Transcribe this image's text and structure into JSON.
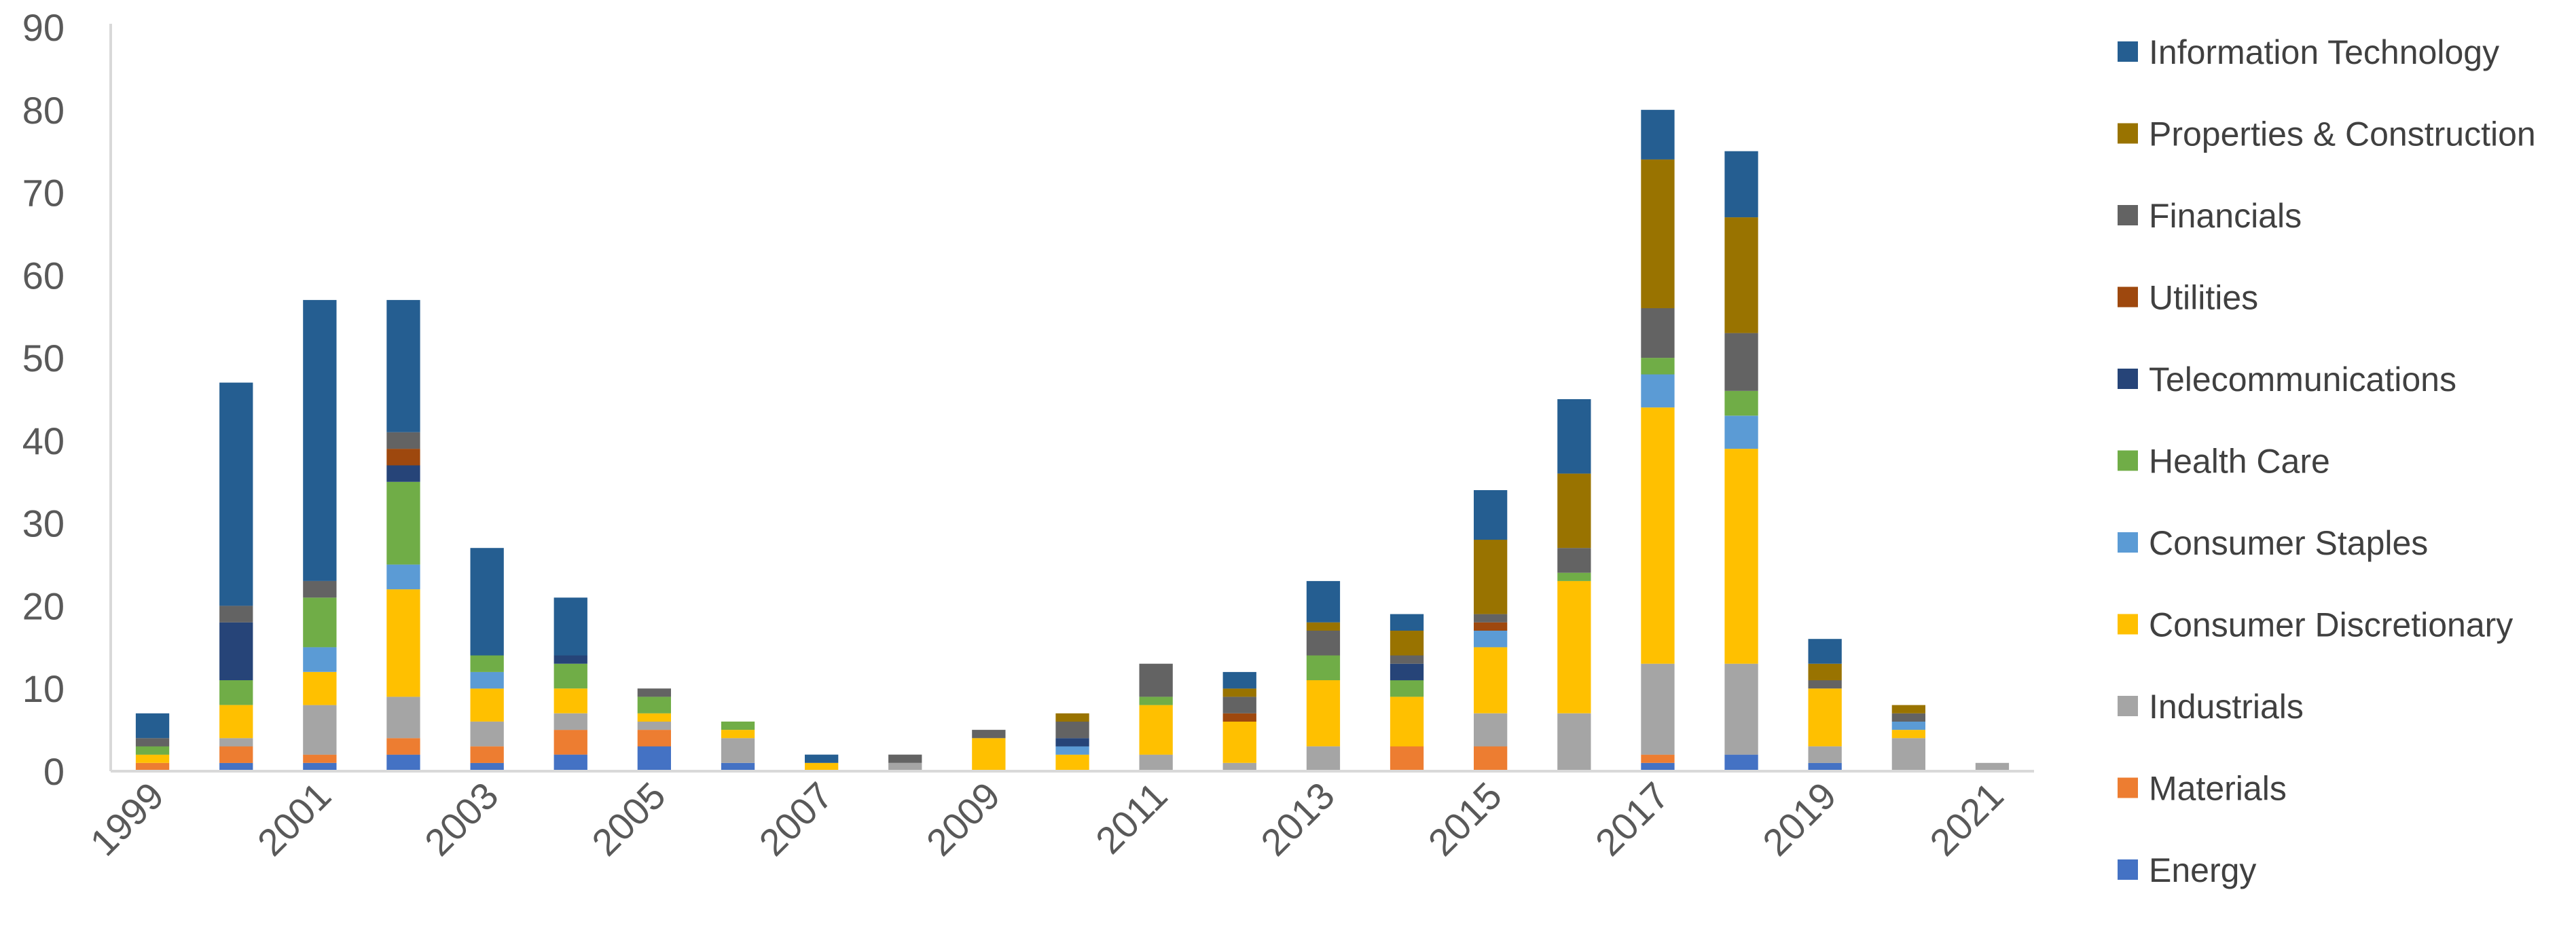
{
  "chart_data": {
    "type": "bar",
    "stacked": true,
    "categories": [
      "1999",
      "2000",
      "2001",
      "2002",
      "2003",
      "2004",
      "2005",
      "2006",
      "2007",
      "2008",
      "2009",
      "2010",
      "2011",
      "2012",
      "2013",
      "2014",
      "2015",
      "2016",
      "2017",
      "2018",
      "2019",
      "2020",
      "2021"
    ],
    "x_tick_labels": [
      "1999",
      "2001",
      "2003",
      "2005",
      "2007",
      "2009",
      "2011",
      "2013",
      "2015",
      "2017",
      "2019",
      "2021"
    ],
    "ylim": [
      0,
      90
    ],
    "y_ticks": [
      0,
      10,
      20,
      30,
      40,
      50,
      60,
      70,
      80,
      90
    ],
    "grid": false,
    "legend_position": "right",
    "series": [
      {
        "name": "Energy",
        "color": "#4472C4",
        "values": [
          0,
          1,
          1,
          2,
          1,
          2,
          3,
          1,
          0,
          0,
          0,
          0,
          0,
          0,
          0,
          0,
          0,
          0,
          1,
          2,
          1,
          0,
          0
        ]
      },
      {
        "name": "Materials",
        "color": "#ED7D31",
        "values": [
          1,
          2,
          1,
          2,
          2,
          3,
          2,
          0,
          0,
          0,
          0,
          0,
          0,
          0,
          0,
          3,
          3,
          0,
          1,
          0,
          0,
          0,
          0
        ]
      },
      {
        "name": "Industrials",
        "color": "#A5A5A5",
        "values": [
          0,
          1,
          6,
          5,
          3,
          2,
          1,
          3,
          0,
          1,
          0,
          0,
          2,
          1,
          3,
          0,
          4,
          7,
          11,
          11,
          2,
          4,
          1
        ]
      },
      {
        "name": "Consumer Discretionary",
        "color": "#FFC000",
        "values": [
          1,
          4,
          4,
          13,
          4,
          3,
          1,
          1,
          1,
          0,
          4,
          2,
          6,
          5,
          8,
          6,
          8,
          16,
          31,
          26,
          7,
          1,
          0
        ]
      },
      {
        "name": "Consumer Staples",
        "color": "#5B9BD5",
        "values": [
          0,
          0,
          3,
          3,
          2,
          0,
          0,
          0,
          0,
          0,
          0,
          1,
          0,
          0,
          0,
          0,
          2,
          0,
          4,
          4,
          0,
          1,
          0
        ]
      },
      {
        "name": "Health Care",
        "color": "#70AD47",
        "values": [
          1,
          3,
          6,
          10,
          2,
          3,
          2,
          1,
          0,
          0,
          0,
          0,
          1,
          0,
          3,
          2,
          0,
          1,
          2,
          3,
          0,
          0,
          0
        ]
      },
      {
        "name": "Telecommunications",
        "color": "#264478",
        "values": [
          0,
          7,
          0,
          2,
          0,
          1,
          0,
          0,
          0,
          0,
          0,
          1,
          0,
          0,
          0,
          2,
          0,
          0,
          0,
          0,
          0,
          0,
          0
        ]
      },
      {
        "name": "Utilities",
        "color": "#9E480E",
        "values": [
          0,
          0,
          0,
          2,
          0,
          0,
          0,
          0,
          0,
          0,
          0,
          0,
          0,
          1,
          0,
          0,
          1,
          0,
          0,
          0,
          0,
          0,
          0
        ]
      },
      {
        "name": "Financials",
        "color": "#636363",
        "values": [
          1,
          2,
          2,
          2,
          0,
          0,
          1,
          0,
          0,
          1,
          1,
          2,
          4,
          2,
          3,
          1,
          1,
          3,
          6,
          7,
          1,
          1,
          0
        ]
      },
      {
        "name": "Properties & Construction",
        "color": "#997300",
        "values": [
          0,
          0,
          0,
          0,
          0,
          0,
          0,
          0,
          0,
          0,
          0,
          1,
          0,
          1,
          1,
          3,
          9,
          9,
          18,
          14,
          2,
          1,
          0
        ]
      },
      {
        "name": "Information Technology",
        "color": "#255E91",
        "values": [
          3,
          27,
          34,
          16,
          13,
          7,
          0,
          0,
          1,
          0,
          0,
          0,
          0,
          2,
          5,
          2,
          6,
          9,
          6,
          8,
          3,
          0,
          0
        ]
      }
    ]
  }
}
